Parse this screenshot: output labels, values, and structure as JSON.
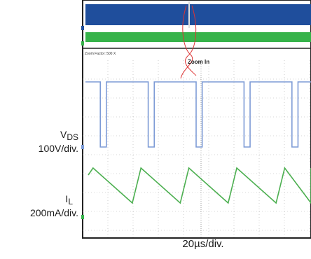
{
  "chart_data": {
    "type": "line",
    "overview": {
      "zoom_factor_label": "Zoom Factor: 500 X",
      "zoom_annotation": "Zoom In",
      "series_colors": [
        "#1f4e9c",
        "#36b34a"
      ]
    },
    "channels": [
      {
        "name_main": "V",
        "name_sub": "DS",
        "scale": "100V/div.",
        "color": "#7d9bd6",
        "waveform": "pulse",
        "pulse_period_div": 0.95,
        "pulse_width_div": 0.12,
        "first_pulse_div": 0.7
      },
      {
        "name_main": "I",
        "name_sub": "L",
        "scale": "200mA/div.",
        "color": "#4caf50",
        "waveform": "sawtooth",
        "period_div": 0.95,
        "first_peak_div": 0.95
      }
    ],
    "x_scale": "20µs/div.",
    "grid": true
  }
}
